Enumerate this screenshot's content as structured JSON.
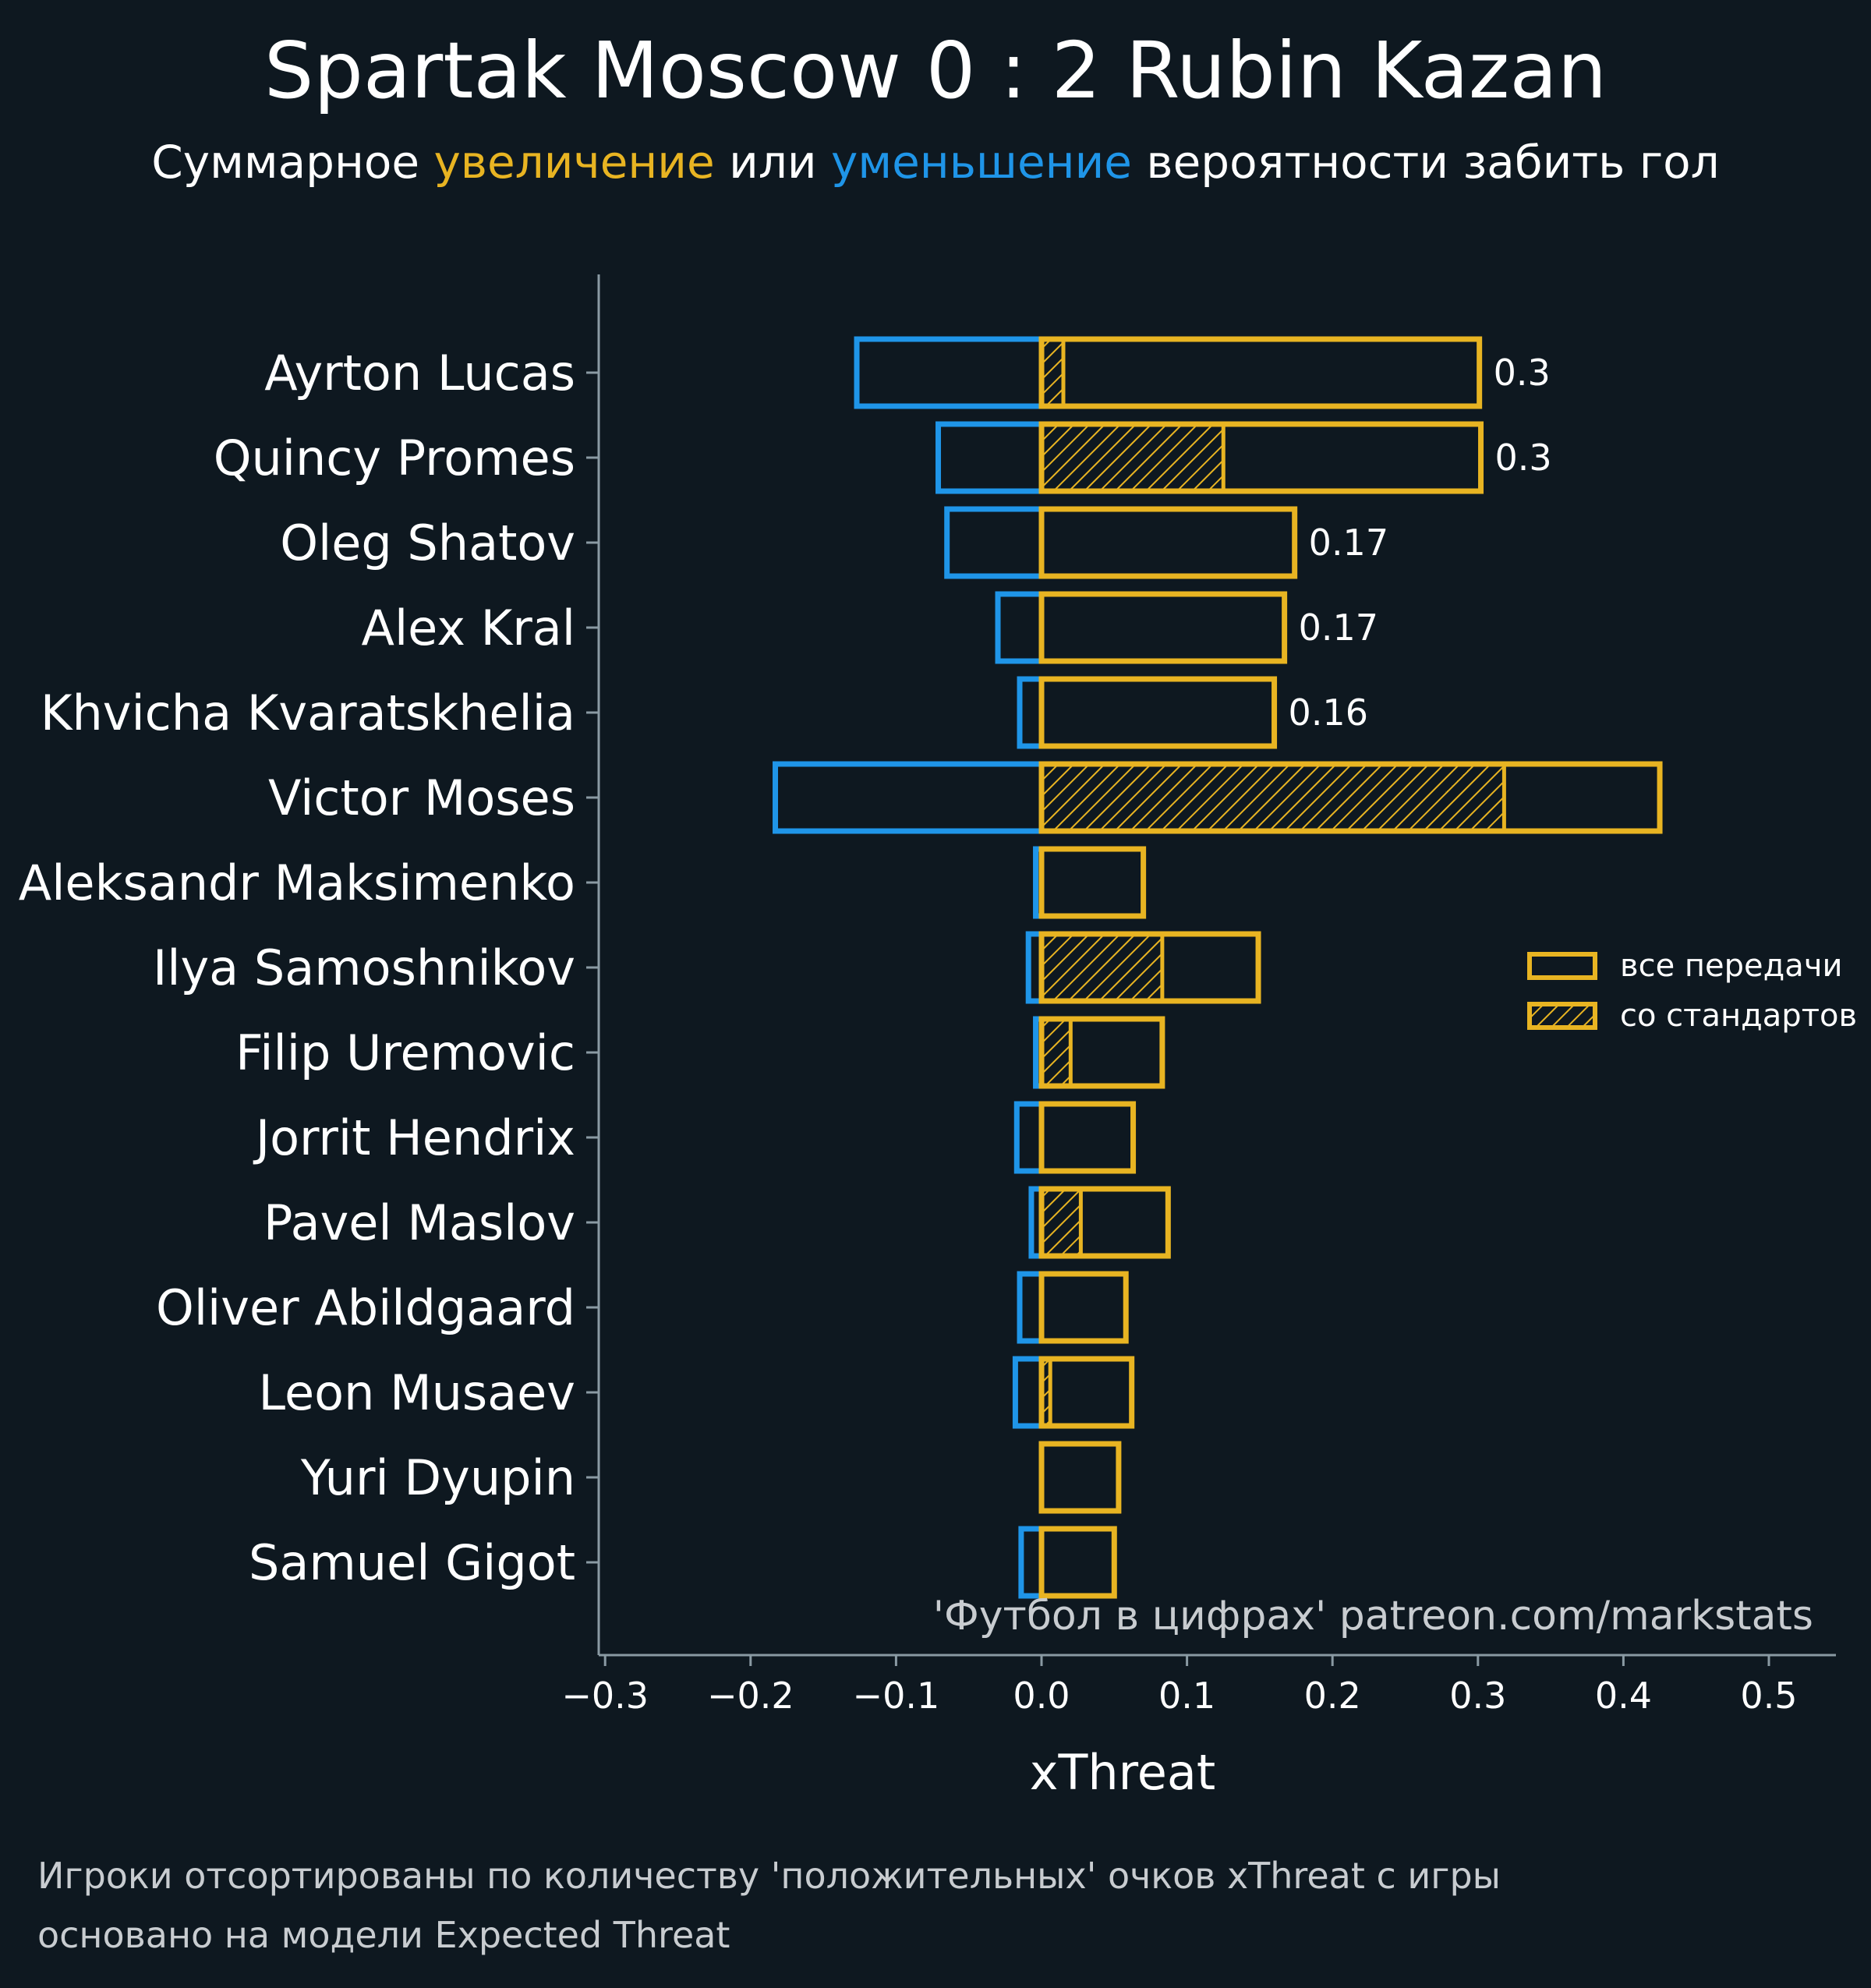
{
  "title": "Spartak Moscow 0 : 2 Rubin Kazan",
  "subtitle": {
    "part1": "Суммарное ",
    "increase_word": "увеличение",
    "part2": " или ",
    "decrease_word": "уменьшение",
    "part3": " вероятности забить гол"
  },
  "watermark": "'Футбол в цифрах' patreon.com/markstats",
  "footer": {
    "line1": "Игроки отсортированы по количеству 'положительных' очков xThreat с игры",
    "line2": "основано на модели Expected Threat"
  },
  "colors": {
    "background": "#0e1820",
    "positive": "#e8b422",
    "negative": "#1f95e8",
    "axis": "#8a9aa3",
    "text": "#ffffff"
  },
  "chart_data": {
    "type": "bar",
    "orientation": "horizontal",
    "xlabel": "xThreat",
    "xlim": [
      -0.3,
      0.55
    ],
    "xticks": [
      -0.3,
      -0.2,
      -0.1,
      0.0,
      0.1,
      0.2,
      0.3,
      0.4,
      0.5
    ],
    "xtick_labels": [
      "−0.3",
      "−0.2",
      "−0.1",
      "0.0",
      "0.1",
      "0.2",
      "0.3",
      "0.4",
      "0.5"
    ],
    "legend": {
      "placement": "right",
      "items": [
        {
          "label": "все передачи",
          "style": "outline"
        },
        {
          "label": "со стандартов",
          "style": "hatched"
        }
      ]
    },
    "grid": false,
    "players": [
      {
        "name": "Ayrton Lucas",
        "negative": -0.127,
        "positive": 0.301,
        "set_piece": 0.015,
        "label": "0.3"
      },
      {
        "name": "Quincy Promes",
        "negative": -0.071,
        "positive": 0.302,
        "set_piece": 0.125,
        "label": "0.3"
      },
      {
        "name": "Oleg Shatov",
        "negative": -0.065,
        "positive": 0.174,
        "set_piece": 0.0,
        "label": "0.17"
      },
      {
        "name": "Alex Kral",
        "negative": -0.03,
        "positive": 0.167,
        "set_piece": 0.0,
        "label": "0.17"
      },
      {
        "name": "Khvicha Kvaratskhelia",
        "negative": -0.015,
        "positive": 0.16,
        "set_piece": 0.0,
        "label": "0.16"
      },
      {
        "name": "Victor Moses",
        "negative": -0.183,
        "positive": 0.425,
        "set_piece": 0.318,
        "label": ""
      },
      {
        "name": "Aleksandr Maksimenko",
        "negative": -0.004,
        "positive": 0.07,
        "set_piece": 0.0,
        "label": ""
      },
      {
        "name": "Ilya Samoshnikov",
        "negative": -0.009,
        "positive": 0.149,
        "set_piece": 0.083,
        "label": ""
      },
      {
        "name": "Filip Uremovic",
        "negative": -0.004,
        "positive": 0.083,
        "set_piece": 0.02,
        "label": ""
      },
      {
        "name": "Jorrit Hendrix",
        "negative": -0.017,
        "positive": 0.063,
        "set_piece": 0.0,
        "label": ""
      },
      {
        "name": "Pavel Maslov",
        "negative": -0.007,
        "positive": 0.087,
        "set_piece": 0.027,
        "label": ""
      },
      {
        "name": "Oliver Abildgaard",
        "negative": -0.015,
        "positive": 0.058,
        "set_piece": 0.0,
        "label": ""
      },
      {
        "name": "Leon Musaev",
        "negative": -0.018,
        "positive": 0.062,
        "set_piece": 0.006,
        "label": ""
      },
      {
        "name": "Yuri Dyupin",
        "negative": 0.0,
        "positive": 0.053,
        "set_piece": 0.0,
        "label": ""
      },
      {
        "name": "Samuel Gigot",
        "negative": -0.014,
        "positive": 0.05,
        "set_piece": 0.0,
        "label": ""
      }
    ]
  }
}
